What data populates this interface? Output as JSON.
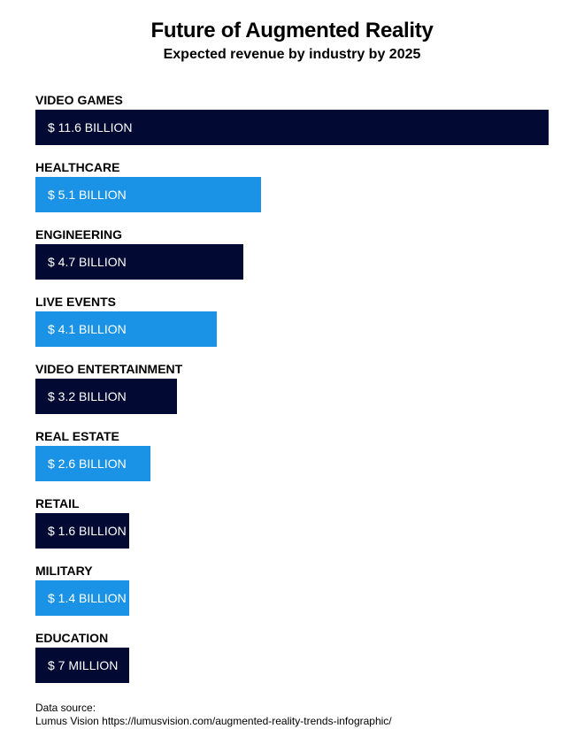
{
  "chart_data": {
    "type": "bar",
    "orientation": "horizontal",
    "title": "Future of Augmented Reality",
    "subtitle": "Expected revenue by industry by 2025",
    "unit": "billion USD",
    "categories": [
      "VIDEO GAMES",
      "HEALTHCARE",
      "ENGINEERING",
      "LIVE EVENTS",
      "VIDEO ENTERTAINMENT",
      "REAL ESTATE",
      "RETAIL",
      "MILITARY",
      "EDUCATION"
    ],
    "values": [
      11.6,
      5.1,
      4.7,
      4.1,
      3.2,
      2.6,
      1.6,
      1.4,
      0.007
    ],
    "value_labels": [
      "$ 11.6 BILLION",
      "$ 5.1 BILLION",
      "$ 4.7 BILLION",
      "$ 4.1 BILLION",
      "$ 3.2 BILLION",
      "$ 2.6 BILLION",
      "$ 1.6 BILLION",
      "$ 1.4 BILLION",
      "$ 7 MILLION"
    ],
    "colors": [
      "#020a33",
      "#1a93e6"
    ],
    "xlim": [
      0,
      11.6
    ],
    "grid": false,
    "legend": "none"
  },
  "source": {
    "label": "Data source:",
    "text": "Lumus Vision https://lumusvision.com/augmented-reality-trends-infographic/"
  }
}
